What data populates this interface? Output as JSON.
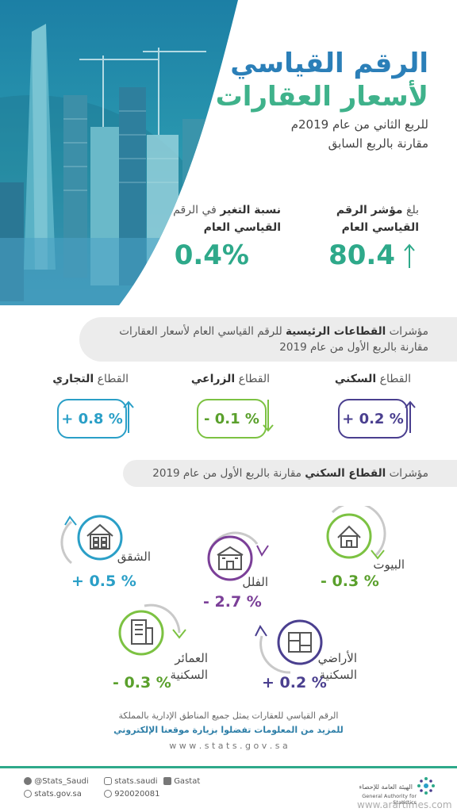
{
  "header": {
    "title_line1": "الرقم القياسي",
    "title_line2": "لأسعار العقارات",
    "subtitle_line1": "للربع الثاني من عام 2019م",
    "subtitle_line2": "مقارنة بالربع السابق"
  },
  "kpis": {
    "index": {
      "label_prefix": "بلغ",
      "label_bold1": "مؤشر الرقم",
      "label_bold2": "القياسي العام",
      "value": "80.4"
    },
    "change": {
      "label_bold1": "نسبة التغير",
      "label_rest1": " في الرقم",
      "label_line2": "القياسي العام",
      "value": "0.4%"
    }
  },
  "sectors_banner": {
    "prefix": "مؤشرات ",
    "bold": "القطاعات الرئيسية",
    "suffix": " للرقم القياسي العام لأسعار العقارات",
    "line2": "مقارنة بالربع الأول من عام 2019"
  },
  "sectors": [
    {
      "label_prefix": "القطاع ",
      "label_bold": "السكني",
      "value": "+ 0.2 %",
      "color": "#4a3f8f"
    },
    {
      "label_prefix": "القطاع ",
      "label_bold": "الزراعي",
      "value": "- 0.1 %",
      "color": "#7cc242"
    },
    {
      "label_prefix": "القطاع ",
      "label_bold": "التجاري",
      "value": "+ 0.8 %",
      "color": "#2a9fc7"
    }
  ],
  "residential_banner": {
    "prefix": "مؤشرات ",
    "bold": "القطاع السكني",
    "suffix": " مقارنة بالربع الأول من عام 2019"
  },
  "residential": [
    {
      "label": "البيوت",
      "value": "- 0.3 %",
      "color": "#7cc242",
      "icon": "house-icon"
    },
    {
      "label": "الفلل",
      "value": "- 2.7 %",
      "color": "#7b3f98",
      "icon": "villa-icon"
    },
    {
      "label": "الشقق",
      "value": "+ 0.5 %",
      "color": "#2a9fc7",
      "icon": "apartment-icon"
    },
    {
      "label_line1": "الأراضي",
      "label_line2": "السكنية",
      "value": "+ 0.2 %",
      "color": "#4a3f8f",
      "icon": "land-plan-icon"
    },
    {
      "label_line1": "العمائر",
      "label_line2": "السكنية",
      "value": "- 0.3 %",
      "color": "#7cc242",
      "icon": "building-icon"
    }
  ],
  "footnote": {
    "line1": "الرقم القياسي للعقارات يمثل جميع المناطق الإدارية بالمملكة",
    "line2": "للمزيد من المعلومات تفضلوا بزيارة موقعنا الإلكتروني",
    "url": "w w w . s t a t s . g o v . s a"
  },
  "footer": {
    "twitter": "@Stats_Saudi",
    "instagram": "stats.saudi",
    "linkedin": "Gastat",
    "website": "stats.gov.sa",
    "phone": "920020081",
    "org_ar": "الهيئة العامة للإحصاء",
    "org_en": "General Authority for Statistics",
    "watermark": "www.arartimes.com"
  }
}
